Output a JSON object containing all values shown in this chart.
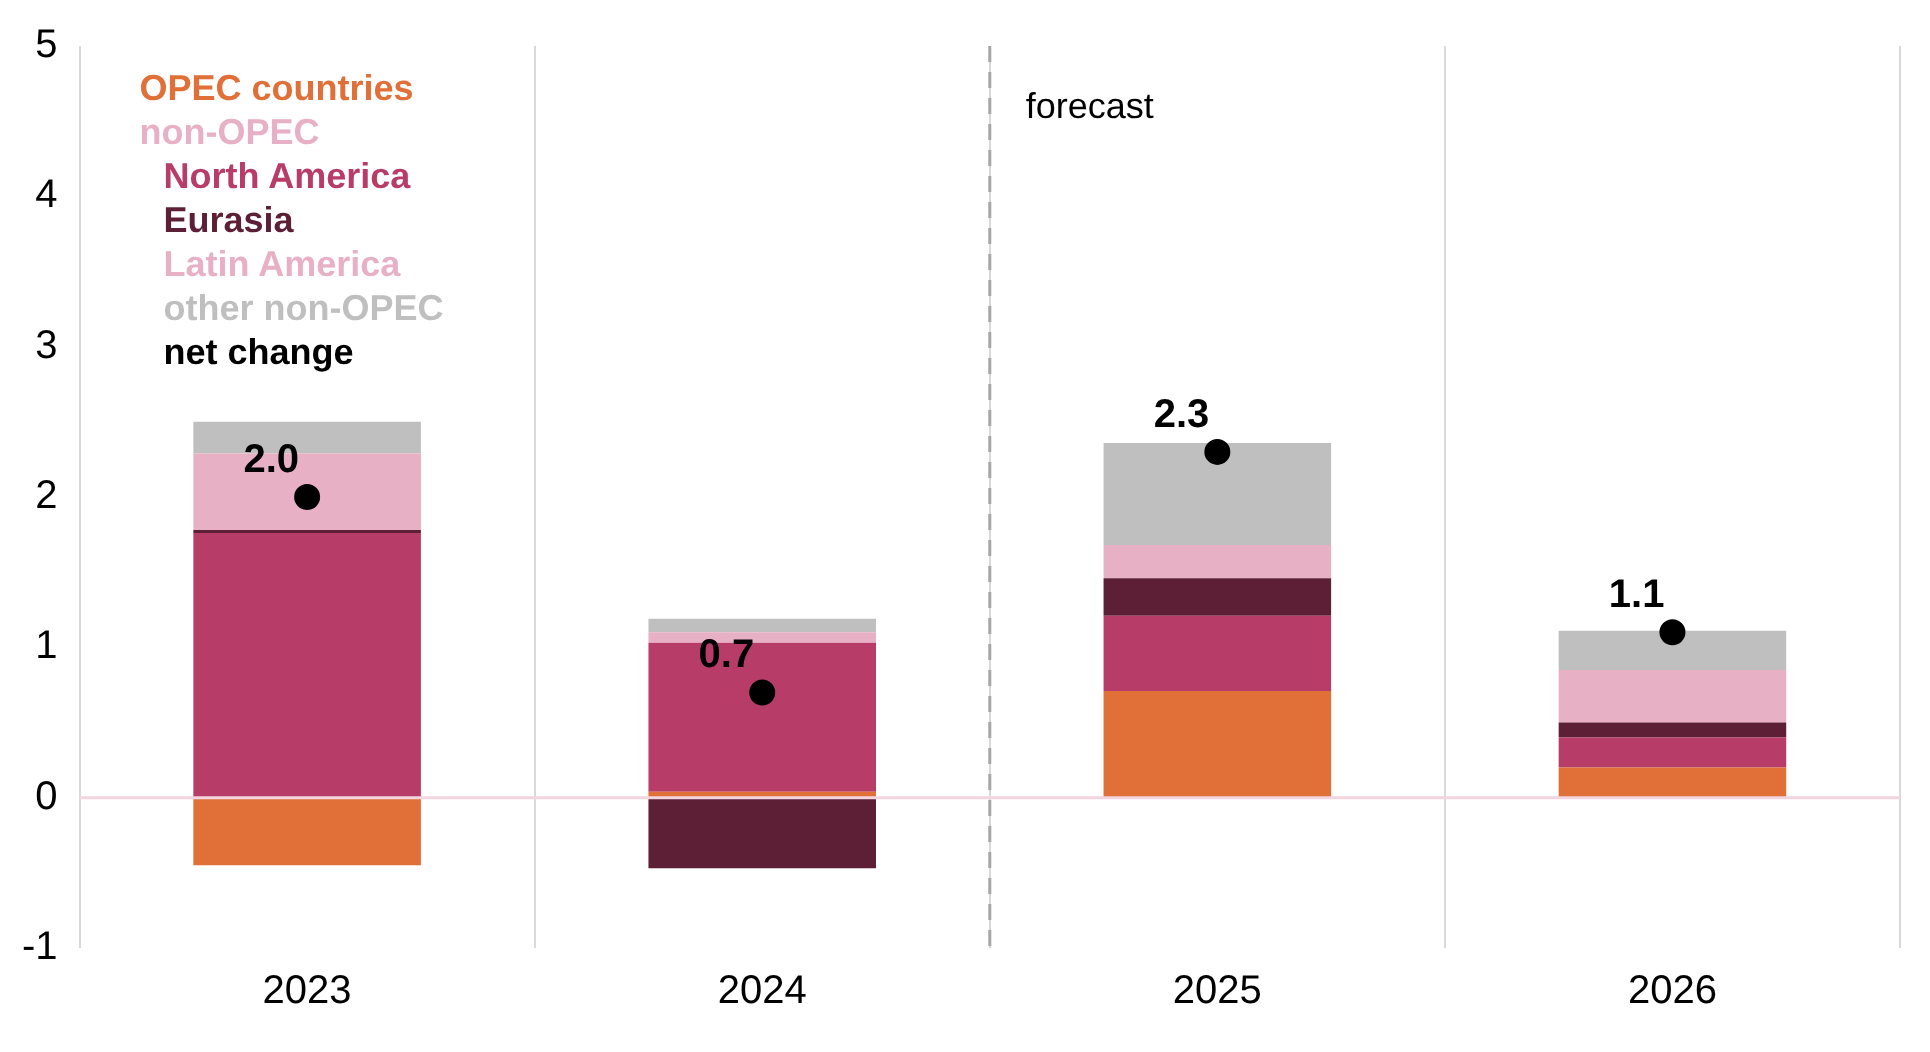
{
  "chart_data": {
    "type": "bar",
    "stacked": true,
    "categories": [
      "2023",
      "2024",
      "2025",
      "2026"
    ],
    "series": [
      {
        "name": "OPEC countries",
        "color": "#e07038",
        "values": [
          -0.45,
          0.04,
          0.71,
          0.2
        ]
      },
      {
        "name": "North America",
        "color": "#b83c68",
        "values": [
          1.76,
          0.99,
          0.5,
          0.2
        ]
      },
      {
        "name": "Eurasia",
        "color": "#5c1f35",
        "values": [
          0.02,
          -0.47,
          0.25,
          0.1
        ]
      },
      {
        "name": "Latin America",
        "color": "#e8b0c4",
        "values": [
          0.51,
          0.07,
          0.22,
          0.35
        ]
      },
      {
        "name": "other non-OPEC",
        "color": "#bfbfbf",
        "values": [
          0.21,
          0.09,
          0.68,
          0.26
        ]
      },
      {
        "name": "net change",
        "type": "scatter",
        "color": "#000000",
        "values": [
          2.0,
          0.7,
          2.3,
          1.1
        ],
        "value_labels": [
          "2.0",
          "0.7",
          "2.3",
          "1.1"
        ]
      }
    ],
    "annotations": [
      "non-OPEC"
    ],
    "ylim": [
      -1,
      5
    ],
    "yticks": [
      -1,
      0,
      1,
      2,
      3,
      4,
      5
    ],
    "ref_lines": [
      {
        "axis": "x",
        "value": "2025",
        "label": "forecast",
        "color": "#a6a6a6",
        "line_style": "dashed"
      },
      {
        "axis": "y",
        "value": 0,
        "color": "#f2d5df"
      }
    ],
    "grid": "x",
    "legend": "top left",
    "marker": "circle"
  }
}
